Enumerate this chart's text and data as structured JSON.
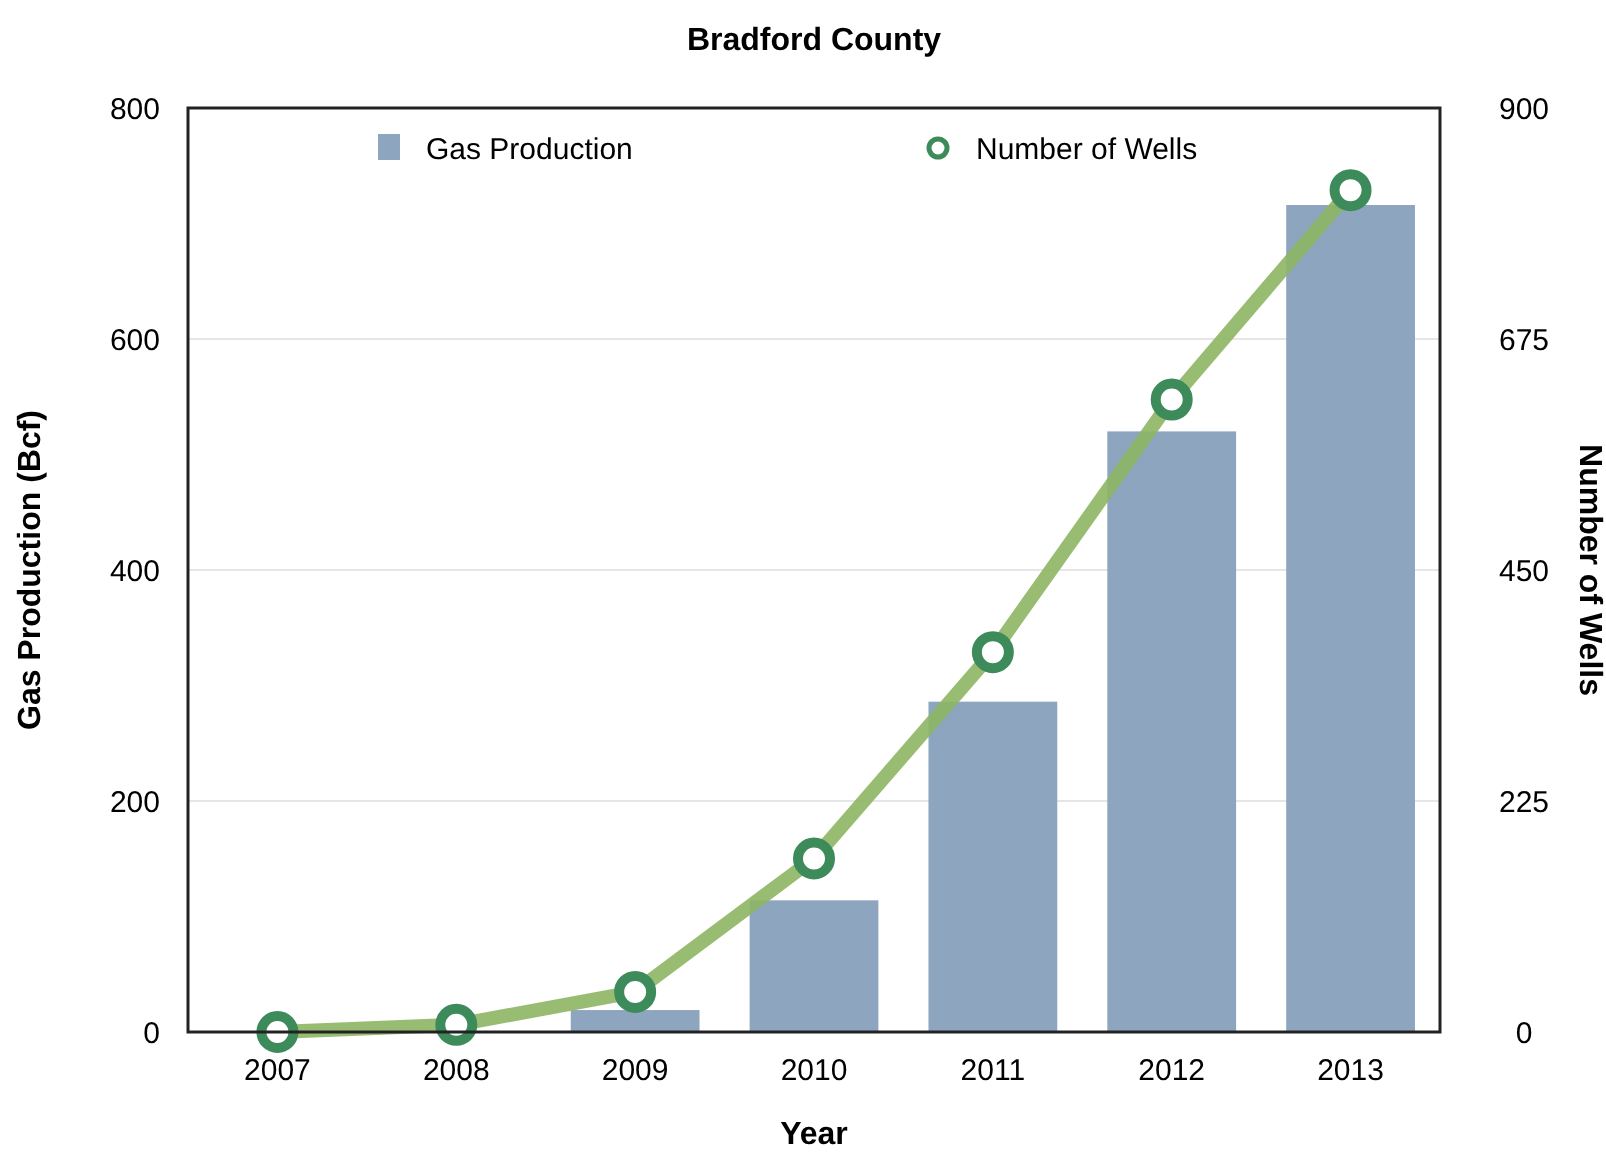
{
  "chart_data": {
    "type": "bar",
    "title": "Bradford County",
    "xlabel": "Year",
    "ylabel": "Gas Production (Bcf)",
    "y2label": "Number of Wells",
    "categories": [
      "2007",
      "2008",
      "2009",
      "2010",
      "2011",
      "2012",
      "2013"
    ],
    "series": [
      {
        "name": "Gas Production",
        "type": "bar",
        "color": "#8ea5c0",
        "values": [
          0,
          0,
          19,
          114,
          286,
          520,
          716
        ]
      },
      {
        "name": "Number of Wells",
        "type": "line",
        "axis": "y2",
        "color": "#8db663",
        "marker": "circle",
        "values": [
          0,
          7,
          39,
          169,
          370,
          616,
          820
        ]
      }
    ],
    "ylim": [
      0,
      800
    ],
    "yticks": [
      0,
      200,
      400,
      600,
      800
    ],
    "y2lim": [
      0,
      900
    ],
    "y2ticks": [
      0,
      225,
      450,
      675,
      900
    ],
    "grid": "y",
    "legend": "top"
  }
}
